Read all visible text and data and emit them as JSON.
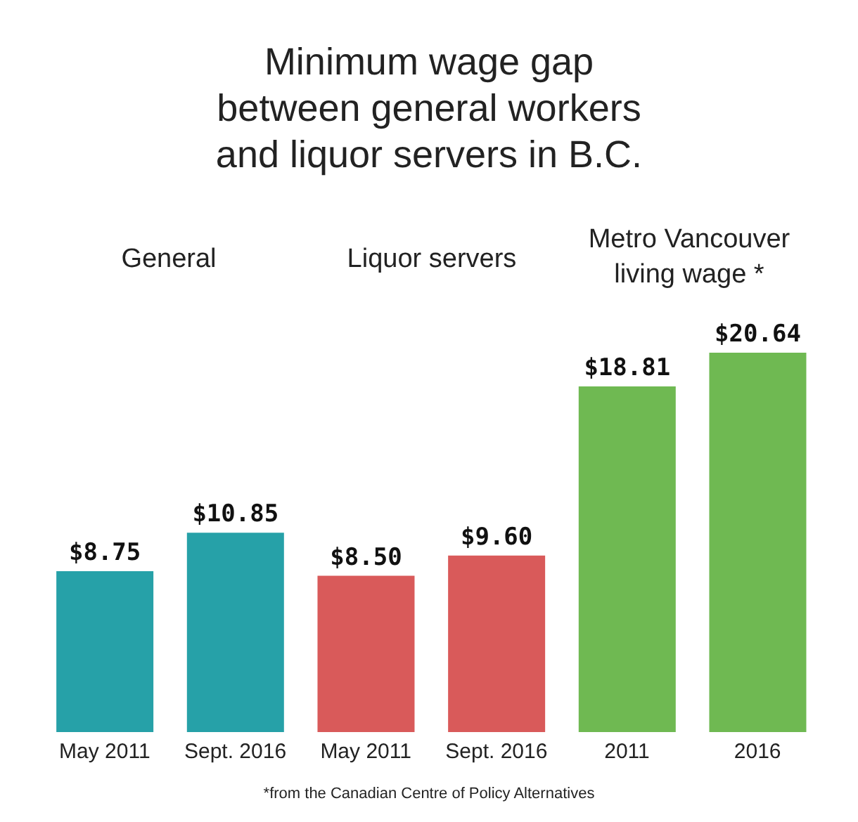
{
  "chart_data": {
    "type": "bar",
    "title": "Minimum wage gap between general workers and liquor servers in B.C.",
    "categories": [
      "May 2011",
      "Sept. 2016",
      "May 2011",
      "Sept. 2016",
      "2011",
      "2016"
    ],
    "values": [
      8.75,
      10.85,
      8.5,
      9.6,
      18.81,
      20.64
    ],
    "colors": [
      "#26a1a8",
      "#26a1a8",
      "#d95a5a",
      "#d95a5a",
      "#6fb952",
      "#6fb952"
    ],
    "value_labels": [
      "$8.75",
      "$10.85",
      "$8.50",
      "$9.60",
      "$18.81",
      "$20.64"
    ],
    "tick_labels": "x",
    "annotations": [
      "General",
      "Liquor servers",
      "Metro Vancouver living wage *",
      "*from the Canadian Centre of Policy Alternatives"
    ]
  }
}
